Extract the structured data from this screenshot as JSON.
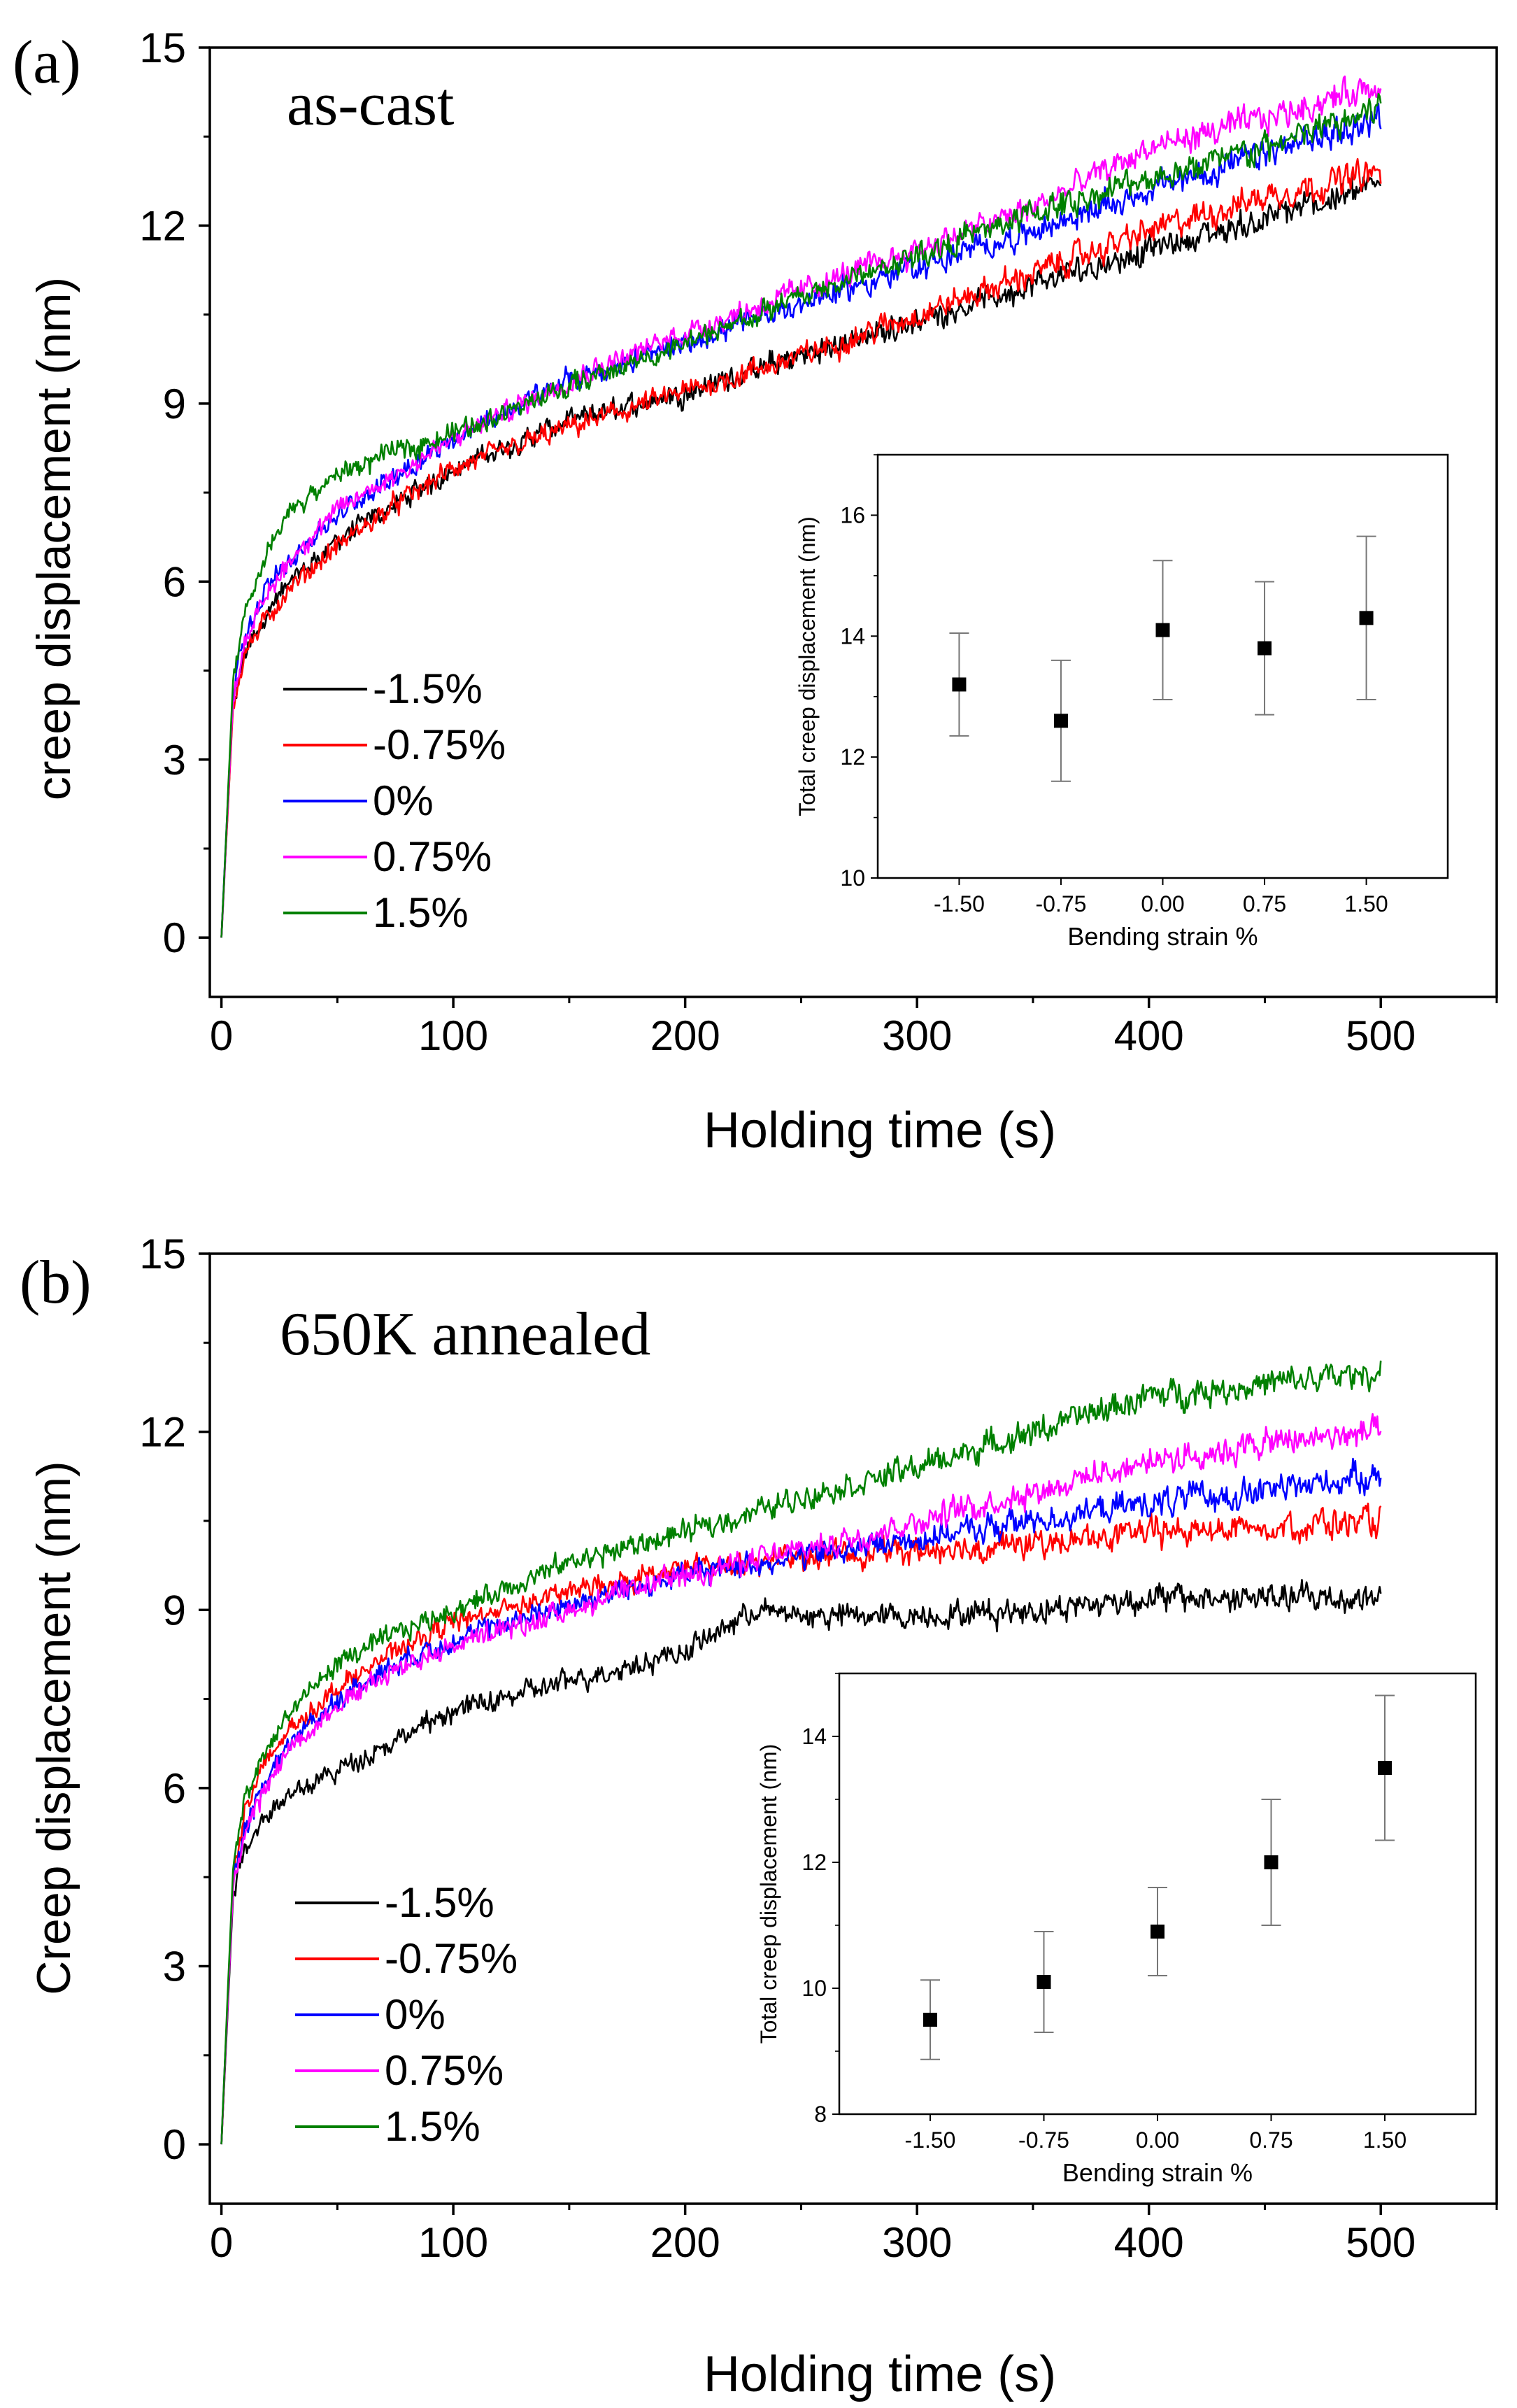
{
  "chart_data": [
    {
      "type": "line",
      "panel_label": "(a)",
      "annotation": "as-cast",
      "xlabel": "Holding time (s)",
      "ylabel": "creep displacement (nm)",
      "xlim": [
        -5,
        550
      ],
      "ylim": [
        -1,
        15
      ],
      "xticks": [
        "0",
        "100",
        "200",
        "300",
        "400",
        "500"
      ],
      "xtick_values": [
        0,
        100,
        200,
        300,
        400,
        500
      ],
      "yticks": [
        "0",
        "3",
        "6",
        "9",
        "12",
        "15"
      ],
      "ytick_values": [
        0,
        3,
        6,
        9,
        12,
        15
      ],
      "legend_position": "left-middle",
      "series": [
        {
          "name": "-1.5%",
          "color": "#000000",
          "x": [
            0,
            5,
            10,
            20,
            30,
            50,
            75,
            100,
            150,
            200,
            250,
            300,
            350,
            400,
            450,
            500
          ],
          "y": [
            0,
            3.9,
            4.8,
            5.5,
            6.0,
            6.7,
            7.3,
            7.9,
            8.7,
            9.2,
            9.8,
            10.4,
            11.0,
            11.6,
            12.1,
            12.7
          ]
        },
        {
          "name": "-0.75%",
          "color": "#ff0000",
          "x": [
            0,
            5,
            10,
            20,
            30,
            50,
            75,
            100,
            150,
            200,
            250,
            300,
            350,
            400,
            450,
            500
          ],
          "y": [
            0,
            3.9,
            4.8,
            5.4,
            5.9,
            6.6,
            7.3,
            7.9,
            8.6,
            9.2,
            9.8,
            10.5,
            11.2,
            11.9,
            12.5,
            12.9
          ]
        },
        {
          "name": "0%",
          "color": "#0000ff",
          "x": [
            0,
            5,
            10,
            20,
            30,
            50,
            75,
            100,
            150,
            200,
            250,
            300,
            350,
            400,
            450,
            500
          ],
          "y": [
            0,
            4.1,
            5.1,
            5.9,
            6.4,
            7.1,
            7.8,
            8.4,
            9.4,
            10.0,
            10.7,
            11.3,
            11.9,
            12.6,
            13.2,
            13.8
          ]
        },
        {
          "name": "0.75%",
          "color": "#ff00ff",
          "x": [
            0,
            5,
            10,
            20,
            30,
            50,
            75,
            100,
            150,
            200,
            250,
            300,
            350,
            400,
            450,
            500
          ],
          "y": [
            0,
            4.0,
            5.0,
            5.8,
            6.4,
            7.2,
            7.8,
            8.4,
            9.4,
            10.2,
            10.9,
            11.6,
            12.3,
            13.3,
            13.8,
            14.4
          ]
        },
        {
          "name": "1.5%",
          "color": "#008000",
          "x": [
            0,
            5,
            10,
            20,
            30,
            50,
            75,
            100,
            150,
            200,
            250,
            300,
            350,
            400,
            450,
            500
          ],
          "y": [
            0,
            4.3,
            5.4,
            6.5,
            7.2,
            7.8,
            8.2,
            8.5,
            9.3,
            10.0,
            10.8,
            11.5,
            12.2,
            12.8,
            13.3,
            14.0
          ]
        }
      ],
      "inset": {
        "type": "scatter",
        "xlabel": "Bending strain %",
        "ylabel": "Total creep displacement (nm)",
        "xlim": [
          -2.1,
          2.1
        ],
        "ylim": [
          10,
          17
        ],
        "xticks": [
          "-1.50",
          "-0.75",
          "0.00",
          "0.75",
          "1.50"
        ],
        "xtick_values": [
          -1.5,
          -0.75,
          0,
          0.75,
          1.5
        ],
        "yticks": [
          "10",
          "12",
          "14",
          "16"
        ],
        "ytick_values": [
          10,
          12,
          14,
          16
        ],
        "points": [
          {
            "x": -1.5,
            "y": 13.2,
            "err": 0.85
          },
          {
            "x": -0.75,
            "y": 12.6,
            "err": 1.0
          },
          {
            "x": 0.0,
            "y": 14.1,
            "err": 1.15
          },
          {
            "x": 0.75,
            "y": 13.8,
            "err": 1.1
          },
          {
            "x": 1.5,
            "y": 14.3,
            "err": 1.35
          }
        ]
      }
    },
    {
      "type": "line",
      "panel_label": "(b)",
      "annotation": "650K annealed",
      "xlabel": "Holding time (s)",
      "ylabel": "Creep displacement (nm)",
      "xlim": [
        -5,
        550
      ],
      "ylim": [
        -1,
        15
      ],
      "xticks": [
        "0",
        "100",
        "200",
        "300",
        "400",
        "500"
      ],
      "xtick_values": [
        0,
        100,
        200,
        300,
        400,
        500
      ],
      "yticks": [
        "0",
        "3",
        "6",
        "9",
        "12",
        "15"
      ],
      "ytick_values": [
        0,
        3,
        6,
        9,
        12,
        15
      ],
      "legend_position": "left-middle",
      "series": [
        {
          "name": "-1.5%",
          "color": "#000000",
          "x": [
            0,
            5,
            10,
            20,
            30,
            50,
            75,
            100,
            150,
            200,
            230,
            250,
            300,
            350,
            400,
            450,
            500
          ],
          "y": [
            0,
            4.2,
            5.0,
            5.6,
            5.9,
            6.3,
            6.8,
            7.3,
            7.8,
            8.3,
            9.0,
            8.9,
            8.9,
            9.0,
            9.2,
            9.2,
            9.2
          ]
        },
        {
          "name": "-0.75%",
          "color": "#ff0000",
          "x": [
            0,
            5,
            10,
            20,
            30,
            50,
            75,
            100,
            150,
            200,
            250,
            300,
            350,
            400,
            450,
            500
          ],
          "y": [
            0,
            4.5,
            5.6,
            6.5,
            7.0,
            7.7,
            8.3,
            8.8,
            9.3,
            9.7,
            9.9,
            10.0,
            10.1,
            10.3,
            10.4,
            10.5
          ]
        },
        {
          "name": "0%",
          "color": "#0000ff",
          "x": [
            0,
            5,
            10,
            20,
            30,
            50,
            75,
            100,
            150,
            200,
            250,
            300,
            350,
            400,
            450,
            500
          ],
          "y": [
            0,
            4.4,
            5.3,
            6.2,
            6.8,
            7.5,
            8.1,
            8.5,
            9.1,
            9.6,
            9.9,
            10.2,
            10.5,
            10.8,
            11.0,
            11.3
          ]
        },
        {
          "name": "0.75%",
          "color": "#ff00ff",
          "x": [
            0,
            5,
            10,
            20,
            30,
            50,
            75,
            100,
            150,
            200,
            250,
            300,
            350,
            400,
            450,
            500
          ],
          "y": [
            0,
            4.3,
            5.3,
            6.1,
            6.7,
            7.4,
            8.0,
            8.4,
            9.0,
            9.6,
            10.0,
            10.5,
            11.0,
            11.5,
            11.8,
            12.0
          ]
        },
        {
          "name": "1.5%",
          "color": "#008000",
          "x": [
            0,
            5,
            10,
            20,
            30,
            50,
            75,
            100,
            150,
            200,
            250,
            300,
            350,
            400,
            450,
            500
          ],
          "y": [
            0,
            4.6,
            5.8,
            6.7,
            7.3,
            8.1,
            8.6,
            9.0,
            9.8,
            10.3,
            10.9,
            11.4,
            12.0,
            12.6,
            12.8,
            13.0
          ]
        }
      ],
      "inset": {
        "type": "scatter",
        "xlabel": "Bending strain %",
        "ylabel": "Total creep displacement (nm)",
        "xlim": [
          -2.1,
          2.1
        ],
        "ylim": [
          8,
          15
        ],
        "xticks": [
          "-1.50",
          "-0.75",
          "0.00",
          "0.75",
          "1.50"
        ],
        "xtick_values": [
          -1.5,
          -0.75,
          0,
          0.75,
          1.5
        ],
        "yticks": [
          "8",
          "10",
          "12",
          "14"
        ],
        "ytick_values": [
          8,
          10,
          12,
          14
        ],
        "points": [
          {
            "x": -1.5,
            "y": 9.5,
            "err": 0.63
          },
          {
            "x": -0.75,
            "y": 10.1,
            "err": 0.8
          },
          {
            "x": 0.0,
            "y": 10.9,
            "err": 0.7
          },
          {
            "x": 0.75,
            "y": 12.0,
            "err": 1.0
          },
          {
            "x": 1.5,
            "y": 13.5,
            "err": 1.15
          }
        ]
      }
    }
  ]
}
